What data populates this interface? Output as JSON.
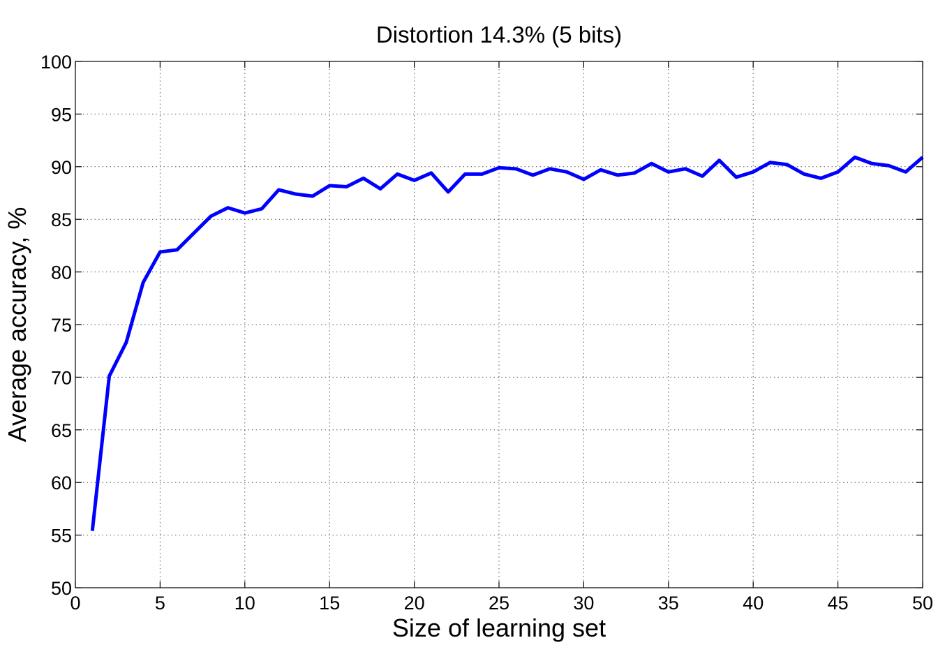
{
  "chart_data": {
    "type": "line",
    "title": "Distortion 14.3% (5 bits)",
    "xlabel": "Size of learning set",
    "ylabel": "Average accuracy, %",
    "xlim": [
      0,
      50
    ],
    "ylim": [
      50,
      100
    ],
    "xticks": [
      0,
      5,
      10,
      15,
      20,
      25,
      30,
      35,
      40,
      45,
      50
    ],
    "yticks": [
      50,
      55,
      60,
      65,
      70,
      75,
      80,
      85,
      90,
      95,
      100
    ],
    "grid": true,
    "series": [
      {
        "color": "#0000ff",
        "x": [
          1,
          2,
          3,
          4,
          5,
          6,
          7,
          8,
          9,
          10,
          11,
          12,
          13,
          14,
          15,
          16,
          17,
          18,
          19,
          20,
          21,
          22,
          23,
          24,
          25,
          26,
          27,
          28,
          29,
          30,
          31,
          32,
          33,
          34,
          35,
          36,
          37,
          38,
          39,
          40,
          41,
          42,
          43,
          44,
          45,
          46,
          47,
          48,
          49,
          50
        ],
        "y": [
          55.4,
          70.1,
          73.3,
          79.0,
          81.9,
          82.1,
          83.7,
          85.3,
          86.1,
          85.6,
          86.0,
          87.8,
          87.4,
          87.2,
          88.2,
          88.1,
          88.9,
          87.9,
          89.3,
          88.7,
          89.4,
          87.6,
          89.3,
          89.3,
          89.9,
          89.8,
          89.2,
          89.8,
          89.5,
          88.8,
          89.7,
          89.2,
          89.4,
          90.3,
          89.5,
          89.8,
          89.1,
          90.6,
          89.0,
          89.5,
          90.4,
          90.2,
          89.3,
          88.9,
          89.5,
          90.9,
          90.3,
          90.1,
          89.5,
          90.9
        ]
      }
    ]
  }
}
